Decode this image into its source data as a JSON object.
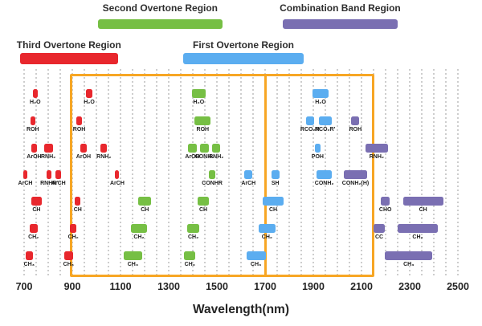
{
  "colors": {
    "third_overtone": "#e8272d",
    "second_overtone": "#76bf44",
    "first_overtone": "#5badf0",
    "combination_band": "#7a6fb2",
    "box": "#f7a624",
    "grid": "#cdcdcd",
    "text": "#242424"
  },
  "legend": {
    "regions": [
      {
        "id": "second-overtone-region",
        "label": "Second Overtone Region",
        "region": "second_overtone",
        "start_nm": 1006,
        "end_nm": 1523,
        "line": 1
      },
      {
        "id": "combination-band-region",
        "label": "Combination Band Region",
        "region": "combination_band",
        "start_nm": 1774,
        "end_nm": 2249,
        "line": 1
      },
      {
        "id": "third-overtone-region",
        "label": "Third Overtone Region",
        "region": "third_overtone",
        "start_nm": 682,
        "end_nm": 1090,
        "line": 2
      },
      {
        "id": "first-overtone-region",
        "label": "First Overtone Region",
        "region": "first_overtone",
        "start_nm": 1361,
        "end_nm": 1859,
        "line": 2
      }
    ]
  },
  "chart_data": {
    "type": "bar",
    "orientation": "horizontal-interval",
    "title": "",
    "xlabel": "Wavelength(nm)",
    "ylabel": "",
    "xlim": [
      700,
      2500
    ],
    "x_ticks": [
      700,
      900,
      1100,
      1300,
      1500,
      1700,
      1900,
      2100,
      2300,
      2500
    ],
    "grid_step_nm": 50,
    "rows": 7,
    "highlight_boxes": {
      "start_nm": 895,
      "divider_nm": 1700,
      "end_nm": 2145
    },
    "bands": [
      {
        "label": "H₂O",
        "region": "third_overtone",
        "row": 1,
        "start_nm": 735,
        "end_nm": 757
      },
      {
        "label": "ROH",
        "region": "third_overtone",
        "row": 2,
        "start_nm": 726,
        "end_nm": 746
      },
      {
        "label": "ArOH",
        "region": "third_overtone",
        "row": 3,
        "start_nm": 731,
        "end_nm": 752
      },
      {
        "label": "RNH₂",
        "region": "third_overtone",
        "row": 3,
        "start_nm": 782,
        "end_nm": 819
      },
      {
        "label": "ArCH",
        "region": "third_overtone",
        "row": 4,
        "start_nm": 698,
        "end_nm": 712
      },
      {
        "label": "RNHR'",
        "region": "third_overtone",
        "row": 4,
        "start_nm": 792,
        "end_nm": 815
      },
      {
        "label": "ArCH",
        "region": "third_overtone",
        "row": 4,
        "start_nm": 831,
        "end_nm": 854
      },
      {
        "label": "CH",
        "region": "third_overtone",
        "row": 5,
        "start_nm": 731,
        "end_nm": 772
      },
      {
        "label": "CH₂",
        "region": "third_overtone",
        "row": 6,
        "start_nm": 722,
        "end_nm": 756
      },
      {
        "label": "CH₃",
        "region": "third_overtone",
        "row": 7,
        "start_nm": 706,
        "end_nm": 736
      },
      {
        "label": "H₂O",
        "region": "third_overtone",
        "row": 1,
        "start_nm": 958,
        "end_nm": 982
      },
      {
        "label": "ROH",
        "region": "third_overtone",
        "row": 2,
        "start_nm": 917,
        "end_nm": 940
      },
      {
        "label": "ArOH",
        "region": "third_overtone",
        "row": 3,
        "start_nm": 932,
        "end_nm": 961
      },
      {
        "label": "RNH₂",
        "region": "third_overtone",
        "row": 3,
        "start_nm": 1017,
        "end_nm": 1045
      },
      {
        "label": "ArCH",
        "region": "third_overtone",
        "row": 4,
        "start_nm": 1078,
        "end_nm": 1095
      },
      {
        "label": "CH",
        "region": "third_overtone",
        "row": 5,
        "start_nm": 911,
        "end_nm": 934
      },
      {
        "label": "CH₂",
        "region": "third_overtone",
        "row": 6,
        "start_nm": 891,
        "end_nm": 917
      },
      {
        "label": "CH₃",
        "region": "third_overtone",
        "row": 7,
        "start_nm": 867,
        "end_nm": 902
      },
      {
        "label": "H₂O",
        "region": "second_overtone",
        "row": 1,
        "start_nm": 1397,
        "end_nm": 1452
      },
      {
        "label": "ROH",
        "region": "second_overtone",
        "row": 2,
        "start_nm": 1408,
        "end_nm": 1474
      },
      {
        "label": "ArOH",
        "region": "second_overtone",
        "row": 3,
        "start_nm": 1380,
        "end_nm": 1417
      },
      {
        "label": "CONH₂",
        "region": "second_overtone",
        "row": 3,
        "start_nm": 1430,
        "end_nm": 1467
      },
      {
        "label": "RNH₂",
        "region": "second_overtone",
        "row": 3,
        "start_nm": 1481,
        "end_nm": 1514
      },
      {
        "label": "CONHR",
        "region": "second_overtone",
        "row": 4,
        "start_nm": 1467,
        "end_nm": 1494
      },
      {
        "label": "CH",
        "region": "second_overtone",
        "row": 5,
        "start_nm": 1174,
        "end_nm": 1228
      },
      {
        "label": "CH",
        "region": "second_overtone",
        "row": 5,
        "start_nm": 1420,
        "end_nm": 1467
      },
      {
        "label": "CH₂",
        "region": "second_overtone",
        "row": 6,
        "start_nm": 1142,
        "end_nm": 1211
      },
      {
        "label": "CH₂",
        "region": "second_overtone",
        "row": 6,
        "start_nm": 1378,
        "end_nm": 1426
      },
      {
        "label": "CH₃",
        "region": "second_overtone",
        "row": 7,
        "start_nm": 1114,
        "end_nm": 1189
      },
      {
        "label": "CH₃",
        "region": "second_overtone",
        "row": 7,
        "start_nm": 1364,
        "end_nm": 1411
      },
      {
        "label": "H₂O",
        "region": "first_overtone",
        "row": 1,
        "start_nm": 1897,
        "end_nm": 1963
      },
      {
        "label": "RCO₂H",
        "region": "first_overtone",
        "row": 2,
        "start_nm": 1869,
        "end_nm": 1903
      },
      {
        "label": "RCO₂R'",
        "region": "first_overtone",
        "row": 2,
        "start_nm": 1922,
        "end_nm": 1976
      },
      {
        "label": "POH",
        "region": "first_overtone",
        "row": 3,
        "start_nm": 1906,
        "end_nm": 1930
      },
      {
        "label": "ArCH",
        "region": "first_overtone",
        "row": 4,
        "start_nm": 1614,
        "end_nm": 1648
      },
      {
        "label": "SH",
        "region": "first_overtone",
        "row": 4,
        "start_nm": 1726,
        "end_nm": 1759
      },
      {
        "label": "CONH₂",
        "region": "first_overtone",
        "row": 4,
        "start_nm": 1913,
        "end_nm": 1978
      },
      {
        "label": "CH",
        "region": "first_overtone",
        "row": 5,
        "start_nm": 1689,
        "end_nm": 1778
      },
      {
        "label": "CH₂",
        "region": "first_overtone",
        "row": 6,
        "start_nm": 1672,
        "end_nm": 1744
      },
      {
        "label": "CH₃",
        "region": "first_overtone",
        "row": 7,
        "start_nm": 1622,
        "end_nm": 1702
      },
      {
        "label": "ROH",
        "region": "combination_band",
        "row": 2,
        "start_nm": 2058,
        "end_nm": 2091
      },
      {
        "label": "RNH₂",
        "region": "combination_band",
        "row": 3,
        "start_nm": 2117,
        "end_nm": 2209
      },
      {
        "label": "CONH₂(H)",
        "region": "combination_band",
        "row": 4,
        "start_nm": 2028,
        "end_nm": 2122
      },
      {
        "label": "CHO",
        "region": "combination_band",
        "row": 5,
        "start_nm": 2181,
        "end_nm": 2217
      },
      {
        "label": "CH",
        "region": "combination_band",
        "row": 5,
        "start_nm": 2272,
        "end_nm": 2439
      },
      {
        "label": "CC",
        "region": "combination_band",
        "row": 6,
        "start_nm": 2150,
        "end_nm": 2197
      },
      {
        "label": "CH₂",
        "region": "combination_band",
        "row": 6,
        "start_nm": 2250,
        "end_nm": 2417
      },
      {
        "label": "CH₃",
        "region": "combination_band",
        "row": 7,
        "start_nm": 2198,
        "end_nm": 2394
      }
    ]
  }
}
